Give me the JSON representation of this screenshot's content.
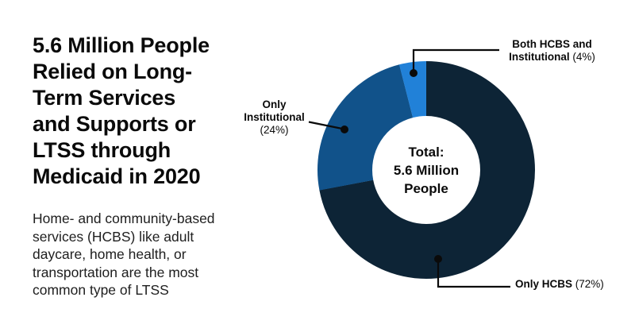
{
  "header": {
    "title": "5.6 Million People\nRelied on Long-\nTerm Services\nand Supports or\nLTSS through\nMedicaid in 2020",
    "subtitle": "Home- and community-based\nservices (HCBS) like adult\ndaycare, home health, or\ntransportation are the most\ncommon type of LTSS"
  },
  "chart_data": {
    "type": "pie",
    "variant": "donut",
    "title": "5.6 Million People Relied on Long-Term Services and Supports or LTSS through Medicaid in 2020",
    "center_label": "Total:\n5.6 Million\nPeople",
    "total_value": "5.6 Million People",
    "direction": "clockwise",
    "start_angle_deg": 0,
    "legend_position": "outside-callouts",
    "callout_color": "#0a0a0a",
    "segments": [
      {
        "name": "Only HCBS",
        "value_pct": 72,
        "pct_label": "(72%)",
        "color": "#0d2436"
      },
      {
        "name": "Only Institutional",
        "value_pct": 24,
        "pct_label": "(24%)",
        "color": "#11528a"
      },
      {
        "name": "Both HCBS and Institutional",
        "value_pct": 4,
        "pct_label": "(4%)",
        "color": "#2181d8"
      }
    ]
  }
}
